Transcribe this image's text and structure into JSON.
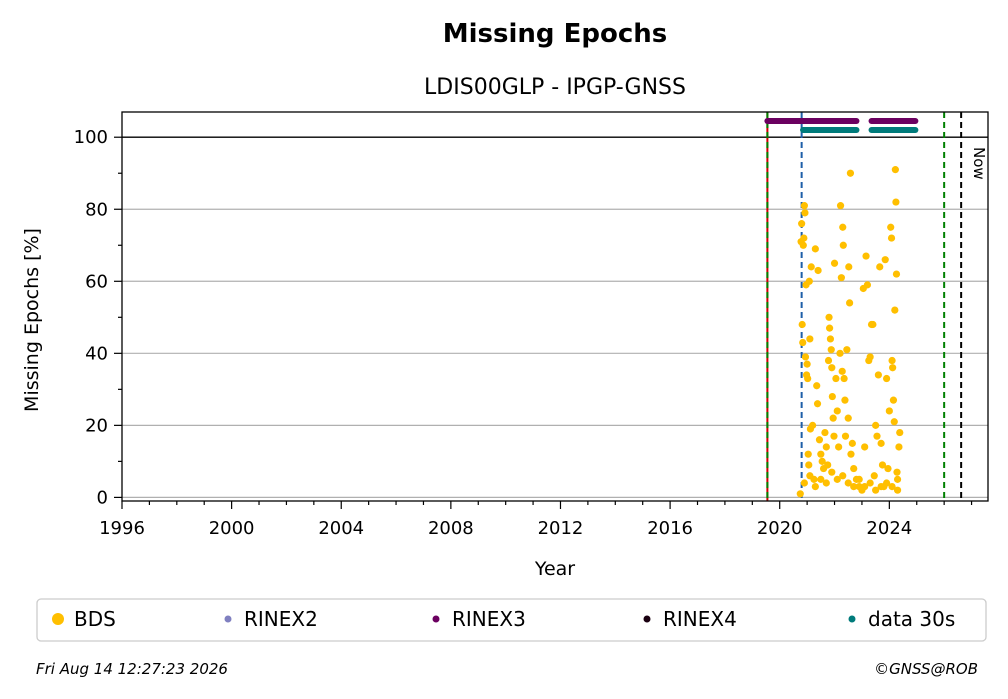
{
  "chart_data": {
    "type": "scatter",
    "title": "Missing Epochs",
    "subtitle": "LDIS00GLP - IPGP-GNSS",
    "xlabel": "Year",
    "ylabel": "Missing Epochs [%]",
    "xlim": [
      1996,
      2027.6
    ],
    "ylim": [
      -1,
      107
    ],
    "x_ticks": [
      1996,
      2000,
      2004,
      2008,
      2012,
      2016,
      2020,
      2024
    ],
    "y_ticks": [
      0,
      20,
      40,
      60,
      80,
      100
    ],
    "grid": "horizontal",
    "legend_position": "bottom",
    "now_label": "Now",
    "vertical_lines": [
      {
        "x": 2019.55,
        "color": "#cc0000",
        "style": "solid"
      },
      {
        "x": 2019.55,
        "color": "#008000",
        "style": "dashed"
      },
      {
        "x": 2020.8,
        "color": "#1f5fa8",
        "style": "dashed"
      },
      {
        "x": 2026.0,
        "color": "#008000",
        "style": "dashed"
      },
      {
        "x": 2026.62,
        "color": "#000000",
        "style": "dashed"
      }
    ],
    "reference_line_y": 100,
    "series": [
      {
        "name": "BDS",
        "color": "#ffbf00",
        "kind": "scatter",
        "points": [
          [
            20.75,
            1
          ],
          [
            20.78,
            71
          ],
          [
            20.8,
            76
          ],
          [
            20.82,
            48
          ],
          [
            20.84,
            43
          ],
          [
            20.86,
            70
          ],
          [
            20.88,
            72
          ],
          [
            20.9,
            81
          ],
          [
            20.92,
            79
          ],
          [
            20.94,
            39
          ],
          [
            20.96,
            59
          ],
          [
            20.98,
            34
          ],
          [
            21.0,
            37
          ],
          [
            21.02,
            33
          ],
          [
            21.04,
            12
          ],
          [
            21.06,
            9
          ],
          [
            21.08,
            60
          ],
          [
            21.1,
            44
          ],
          [
            21.12,
            19
          ],
          [
            21.15,
            64
          ],
          [
            21.2,
            20
          ],
          [
            21.25,
            5
          ],
          [
            21.3,
            69
          ],
          [
            21.35,
            31
          ],
          [
            21.38,
            26
          ],
          [
            21.4,
            63
          ],
          [
            21.45,
            16
          ],
          [
            21.5,
            12
          ],
          [
            21.55,
            10
          ],
          [
            21.6,
            8
          ],
          [
            21.65,
            18
          ],
          [
            21.7,
            14
          ],
          [
            21.75,
            9
          ],
          [
            21.78,
            38
          ],
          [
            21.8,
            50
          ],
          [
            21.82,
            47
          ],
          [
            21.85,
            44
          ],
          [
            21.88,
            41
          ],
          [
            21.9,
            36
          ],
          [
            21.92,
            28
          ],
          [
            21.95,
            22
          ],
          [
            21.98,
            17
          ],
          [
            22.0,
            65
          ],
          [
            22.05,
            33
          ],
          [
            22.1,
            24
          ],
          [
            22.15,
            14
          ],
          [
            22.2,
            40
          ],
          [
            22.22,
            81
          ],
          [
            22.25,
            61
          ],
          [
            22.28,
            35
          ],
          [
            22.3,
            75
          ],
          [
            22.32,
            70
          ],
          [
            22.35,
            33
          ],
          [
            22.38,
            27
          ],
          [
            22.4,
            17
          ],
          [
            22.45,
            41
          ],
          [
            22.5,
            22
          ],
          [
            22.52,
            64
          ],
          [
            22.55,
            54
          ],
          [
            22.58,
            90
          ],
          [
            22.6,
            12
          ],
          [
            22.65,
            15
          ],
          [
            22.7,
            8
          ],
          [
            22.8,
            5
          ],
          [
            22.9,
            3
          ],
          [
            23.0,
            2
          ],
          [
            23.05,
            58
          ],
          [
            23.1,
            14
          ],
          [
            23.15,
            67
          ],
          [
            23.2,
            59
          ],
          [
            23.25,
            38
          ],
          [
            23.3,
            39
          ],
          [
            23.35,
            48
          ],
          [
            23.4,
            48
          ],
          [
            23.45,
            6
          ],
          [
            23.5,
            20
          ],
          [
            23.55,
            17
          ],
          [
            23.6,
            34
          ],
          [
            23.65,
            64
          ],
          [
            23.7,
            15
          ],
          [
            23.75,
            9
          ],
          [
            23.8,
            3
          ],
          [
            23.85,
            66
          ],
          [
            23.9,
            33
          ],
          [
            23.95,
            8
          ],
          [
            24.0,
            24
          ],
          [
            24.05,
            75
          ],
          [
            24.08,
            72
          ],
          [
            24.1,
            38
          ],
          [
            24.12,
            36
          ],
          [
            24.15,
            27
          ],
          [
            24.18,
            21
          ],
          [
            24.2,
            52
          ],
          [
            24.22,
            91
          ],
          [
            24.24,
            82
          ],
          [
            24.26,
            62
          ],
          [
            24.28,
            7
          ],
          [
            24.3,
            2
          ],
          [
            24.35,
            14
          ],
          [
            24.38,
            18
          ],
          [
            20.9,
            4
          ],
          [
            21.1,
            6
          ],
          [
            21.3,
            3
          ],
          [
            21.5,
            5
          ],
          [
            21.7,
            4
          ],
          [
            21.9,
            7
          ],
          [
            22.1,
            5
          ],
          [
            22.3,
            6
          ],
          [
            22.5,
            4
          ],
          [
            22.7,
            3
          ],
          [
            22.9,
            5
          ],
          [
            23.1,
            3
          ],
          [
            23.3,
            4
          ],
          [
            23.5,
            2
          ],
          [
            23.7,
            3
          ],
          [
            23.9,
            4
          ],
          [
            24.1,
            3
          ],
          [
            24.3,
            5
          ]
        ]
      },
      {
        "name": "RINEX2",
        "color": "#8080c0",
        "kind": "marker"
      },
      {
        "name": "RINEX3",
        "color": "#6b0060",
        "kind": "band",
        "y": 104.5,
        "intervals": [
          [
            2019.55,
            2022.8
          ],
          [
            2023.35,
            2024.95
          ]
        ]
      },
      {
        "name": "RINEX4",
        "color": "#1a0010",
        "kind": "marker"
      },
      {
        "name": "data 30s",
        "color": "#007b7b",
        "kind": "band",
        "y": 102,
        "intervals": [
          [
            2020.85,
            2022.8
          ],
          [
            2023.35,
            2024.95
          ]
        ]
      }
    ]
  },
  "footer": {
    "timestamp": "Fri Aug 14 12:27:23 2026",
    "copyright": "©GNSS@ROB"
  }
}
